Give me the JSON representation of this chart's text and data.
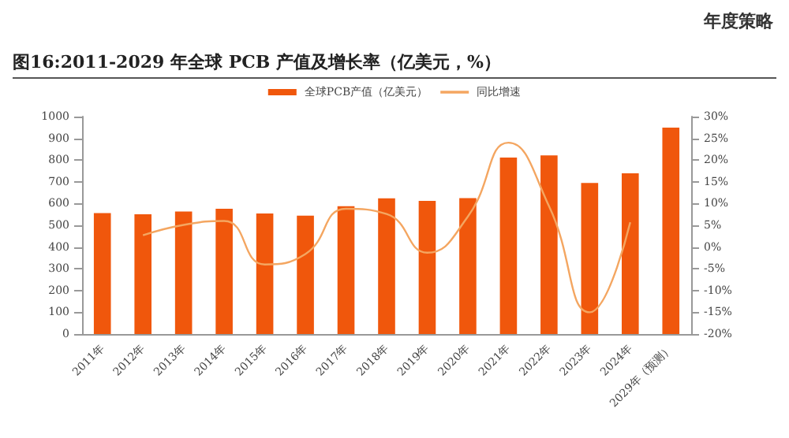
{
  "chart_data": {
    "type": "bar",
    "title": "图16:2011-2029 年全球 PCB 产值及增长率（亿美元，%）",
    "annotations": [
      "年度策略"
    ],
    "categories": [
      "2011年",
      "2012年",
      "2013年",
      "2014年",
      "2015年",
      "2016年",
      "2017年",
      "2018年",
      "2019年",
      "2020年",
      "2021年",
      "2022年",
      "2023年",
      "2024年",
      "2029年（预测）"
    ],
    "series": [
      {
        "name": "全球PCB产值（亿美元）",
        "color": "#f0570c",
        "values": [
          556,
          551,
          563,
          576,
          554,
          544,
          588,
          624,
          612,
          625,
          812,
          822,
          695,
          739,
          949
        ]
      },
      {
        "name": "同比增速",
        "type": "line",
        "axis": "y2",
        "color": "#f4a661",
        "values": [
          null,
          2.7,
          5.1,
          6,
          -4,
          -1.6,
          8.8,
          7.6,
          -1.3,
          7,
          24,
          9.4,
          -15,
          5.7,
          null
        ]
      }
    ],
    "ylim": [
      0,
      1000
    ],
    "yticks": [
      0,
      100,
      200,
      300,
      400,
      500,
      600,
      700,
      800,
      900,
      1000
    ],
    "y2lim": [
      -20,
      30
    ],
    "y2ticks": [
      {
        "value": -20,
        "label": "-20%"
      },
      {
        "value": -15,
        "label": "-15%"
      },
      {
        "value": -10,
        "label": "-10%"
      },
      {
        "value": -5,
        "label": "-5%"
      },
      {
        "value": 0,
        "label": "0%"
      },
      {
        "value": 5,
        "label": "5%"
      },
      {
        "value": 10,
        "label": "10%"
      },
      {
        "value": 15,
        "label": "15%"
      },
      {
        "value": 20,
        "label": "20%"
      },
      {
        "value": 25,
        "label": "25%"
      },
      {
        "value": 30,
        "label": "30%"
      }
    ],
    "legend": "top",
    "grid": false,
    "marker": "none",
    "line_style": "solid"
  }
}
